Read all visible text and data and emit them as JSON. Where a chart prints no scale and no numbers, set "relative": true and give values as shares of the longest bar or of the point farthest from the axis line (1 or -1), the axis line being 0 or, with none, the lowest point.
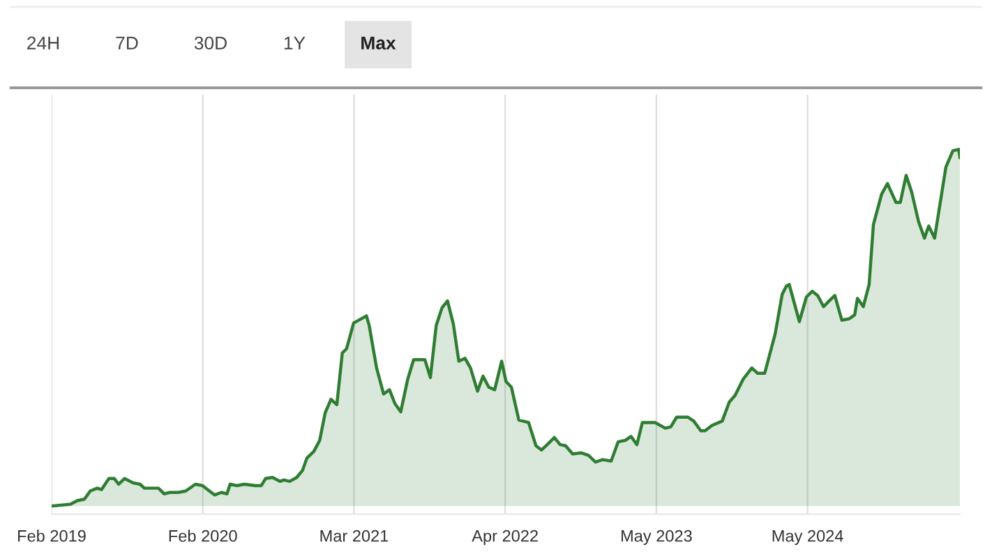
{
  "chart_data": {
    "type": "area",
    "relative": true,
    "color": "#2e7d32",
    "grid": "x",
    "annotations": [
      "24H",
      "7D",
      "30D",
      "1Y",
      "Max"
    ],
    "xlim": [
      "2019-02-05",
      "2025-06-24"
    ],
    "xticks": [
      {
        "value": "2019-02-05",
        "label": "Feb 2019"
      },
      {
        "value": "2020-02-28",
        "label": "Feb 2020"
      },
      {
        "value": "2021-03-22",
        "label": "Mar 2021"
      },
      {
        "value": "2022-04-14",
        "label": "Apr 2022"
      },
      {
        "value": "2023-05-07",
        "label": "May 2023"
      },
      {
        "value": "2024-05-29",
        "label": "May 2024"
      }
    ],
    "x": [
      "2019-02-06",
      "2019-03-25",
      "2019-04-12",
      "2019-04-30",
      "2019-05-15",
      "2019-06-02",
      "2019-06-13",
      "2019-07-02",
      "2019-07-16",
      "2019-07-27",
      "2019-08-11",
      "2019-09-02",
      "2019-09-20",
      "2019-10-01",
      "2019-11-06",
      "2019-11-21",
      "2019-12-05",
      "2019-12-27",
      "2020-01-15",
      "2020-02-09",
      "2020-02-27",
      "2020-03-29",
      "2020-04-16",
      "2020-04-30",
      "2020-05-08",
      "2020-05-26",
      "2020-06-13",
      "2020-07-12",
      "2020-07-27",
      "2020-08-07",
      "2020-08-25",
      "2020-09-13",
      "2020-09-23",
      "2020-10-08",
      "2020-10-26",
      "2020-11-10",
      "2020-11-21",
      "2020-12-09",
      "2020-12-24",
      "2021-01-07",
      "2021-01-22",
      "2021-02-06",
      "2021-02-20",
      "2021-03-03",
      "2021-03-21",
      "2021-04-23",
      "2021-04-30",
      "2021-05-19",
      "2021-06-06",
      "2021-06-21",
      "2021-07-05",
      "2021-07-20",
      "2021-08-07",
      "2021-08-22",
      "2021-09-20",
      "2021-10-04",
      "2021-10-19",
      "2021-11-03",
      "2021-11-17",
      "2021-12-02",
      "2021-12-16",
      "2022-01-01",
      "2022-01-15",
      "2022-02-02",
      "2022-02-16",
      "2022-03-03",
      "2022-03-18",
      "2022-04-05",
      "2022-04-16",
      "2022-04-30",
      "2022-05-19",
      "2022-06-13",
      "2022-07-02",
      "2022-07-16",
      "2022-07-31",
      "2022-08-18",
      "2022-09-02",
      "2022-09-16",
      "2022-10-04",
      "2022-10-26",
      "2022-11-14",
      "2022-12-02",
      "2022-12-20",
      "2023-01-11",
      "2023-01-29",
      "2023-02-16",
      "2023-03-03",
      "2023-03-18",
      "2023-04-01",
      "2023-05-04",
      "2023-05-30",
      "2023-06-13",
      "2023-06-28",
      "2023-07-27",
      "2023-08-11",
      "2023-08-29",
      "2023-09-09",
      "2023-09-27",
      "2023-10-23",
      "2023-11-10",
      "2023-11-25",
      "2023-12-16",
      "2024-01-07",
      "2024-01-22",
      "2024-02-09",
      "2024-03-07",
      "2024-03-25",
      "2024-04-05",
      "2024-04-12",
      "2024-05-08",
      "2024-05-26",
      "2024-06-10",
      "2024-06-24",
      "2024-07-09",
      "2024-07-27",
      "2024-08-07",
      "2024-08-25",
      "2024-09-13",
      "2024-09-27",
      "2024-10-04",
      "2024-10-19",
      "2024-11-03",
      "2024-11-14",
      "2024-12-05",
      "2024-12-20",
      "2025-01-11",
      "2025-01-22",
      "2025-02-06",
      "2025-02-20",
      "2025-03-10",
      "2025-03-25",
      "2025-04-05",
      "2025-04-20",
      "2025-05-04",
      "2025-05-19",
      "2025-06-06",
      "2025-06-21",
      "2025-06-24"
    ],
    "values": [
      0.0,
      0.005,
      0.015,
      0.019,
      0.042,
      0.05,
      0.046,
      0.077,
      0.077,
      0.061,
      0.077,
      0.065,
      0.061,
      0.05,
      0.05,
      0.034,
      0.038,
      0.038,
      0.042,
      0.061,
      0.057,
      0.031,
      0.038,
      0.034,
      0.061,
      0.057,
      0.061,
      0.057,
      0.057,
      0.077,
      0.08,
      0.069,
      0.073,
      0.069,
      0.08,
      0.1,
      0.134,
      0.153,
      0.184,
      0.261,
      0.299,
      0.284,
      0.429,
      0.441,
      0.513,
      0.533,
      0.506,
      0.387,
      0.314,
      0.326,
      0.287,
      0.264,
      0.356,
      0.41,
      0.41,
      0.36,
      0.506,
      0.556,
      0.575,
      0.51,
      0.406,
      0.414,
      0.387,
      0.322,
      0.364,
      0.333,
      0.326,
      0.406,
      0.349,
      0.333,
      0.241,
      0.234,
      0.169,
      0.157,
      0.172,
      0.192,
      0.172,
      0.169,
      0.146,
      0.149,
      0.142,
      0.123,
      0.13,
      0.126,
      0.18,
      0.184,
      0.195,
      0.172,
      0.234,
      0.234,
      0.218,
      0.222,
      0.249,
      0.249,
      0.238,
      0.211,
      0.211,
      0.226,
      0.238,
      0.291,
      0.31,
      0.356,
      0.387,
      0.372,
      0.372,
      0.483,
      0.594,
      0.617,
      0.621,
      0.517,
      0.586,
      0.602,
      0.59,
      0.559,
      0.579,
      0.59,
      0.521,
      0.525,
      0.536,
      0.582,
      0.559,
      0.621,
      0.789,
      0.874,
      0.904,
      0.851,
      0.851,
      0.927,
      0.881,
      0.797,
      0.751,
      0.785,
      0.751,
      0.847,
      0.95,
      0.996,
      1.0,
      0.977
    ]
  }
}
